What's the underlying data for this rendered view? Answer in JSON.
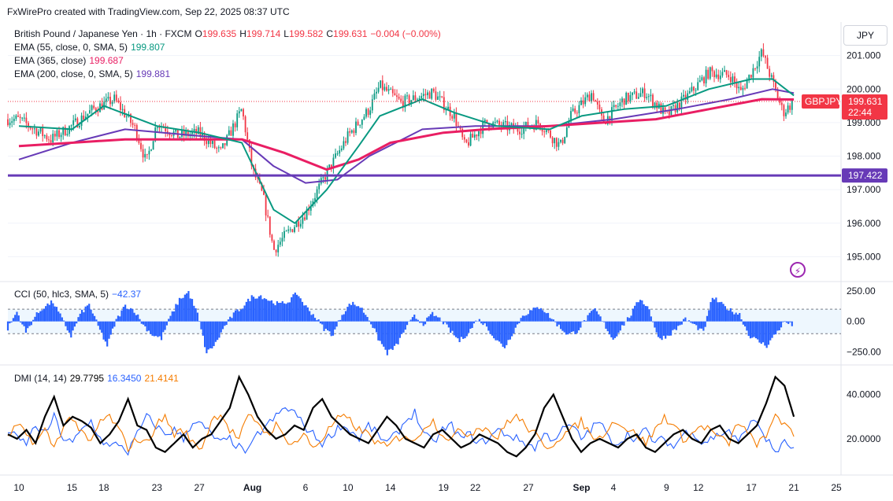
{
  "header": {
    "attribution": "FxWirePro created with TradingView.com, Sep 22, 2025 08:37 UTC"
  },
  "currency_button": "JPY",
  "main_legend": {
    "symbol": "British Pound / Japanese Yen · 1h · FXCM",
    "o_label": "O",
    "o_val": "199.635",
    "h_label": "H",
    "h_val": "199.714",
    "l_label": "L",
    "l_val": "199.582",
    "c_label": "C",
    "c_val": "199.631",
    "change": "−0.004 (−0.00%)",
    "ema55_label": "EMA (55, close, 0, SMA, 5)",
    "ema55_val": "199.807",
    "ema365_label": "EMA (365, close)",
    "ema365_val": "199.687",
    "ema200_label": "EMA (200, close, 0, SMA, 5)",
    "ema200_val": "199.881"
  },
  "cci_legend": {
    "label": "CCI (50, hlc3, SMA, 5)",
    "val": "−42.37"
  },
  "dmi_legend": {
    "label": "DMI (14, 14)",
    "adx": "29.7795",
    "plus": "16.3450",
    "minus": "21.4141"
  },
  "price_tag": {
    "symbol": "GBPJPY",
    "price": "199.631",
    "countdown": "22:44"
  },
  "level_tag": "197.422",
  "colors": {
    "up": "#089981",
    "down": "#f23645",
    "ema55": "#089981",
    "ema365": "#e91e63",
    "ema200": "#673ab7",
    "hline": "#673ab7",
    "cci": "#2962ff",
    "adx": "#000000",
    "plus_di": "#2962ff",
    "minus_di": "#f57c00"
  },
  "chart_data": [
    {
      "type": "candlestick",
      "title": "British Pound / Japanese Yen · 1h · FXCM",
      "x_tick_labels": [
        "10",
        "15",
        "18",
        "23",
        "27",
        "Aug",
        "6",
        "10",
        "14",
        "19",
        "22",
        "27",
        "Sep",
        "4",
        "9",
        "12",
        "17",
        "21",
        "25"
      ],
      "y_tick_labels": [
        "201.000",
        "200.000",
        "199.000",
        "198.000",
        "197.000",
        "196.000",
        "195.000"
      ],
      "ylim": [
        194.4,
        202.0
      ],
      "anchors": [
        {
          "date": "Jul 10",
          "price": 199.1
        },
        {
          "date": "Jul 13",
          "price": 198.5
        },
        {
          "date": "Jul 15",
          "price": 198.9
        },
        {
          "date": "Jul 17",
          "price": 199.4
        },
        {
          "date": "Jul 19",
          "price": 199.7
        },
        {
          "date": "Jul 21",
          "price": 198.8
        },
        {
          "date": "Jul 22",
          "price": 197.8
        },
        {
          "date": "Jul 23",
          "price": 199.0
        },
        {
          "date": "Jul 25",
          "price": 198.6
        },
        {
          "date": "Jul 27",
          "price": 198.7
        },
        {
          "date": "Jul 29",
          "price": 198.1
        },
        {
          "date": "Jul 31",
          "price": 199.4
        },
        {
          "date": "Aug 1",
          "price": 197.6
        },
        {
          "date": "Aug 2",
          "price": 196.8
        },
        {
          "date": "Aug 3",
          "price": 195.2
        },
        {
          "date": "Aug 4",
          "price": 195.6
        },
        {
          "date": "Aug 6",
          "price": 196.3
        },
        {
          "date": "Aug 8",
          "price": 197.5
        },
        {
          "date": "Aug 10",
          "price": 198.6
        },
        {
          "date": "Aug 12",
          "price": 199.4
        },
        {
          "date": "Aug 13",
          "price": 200.1
        },
        {
          "date": "Aug 15",
          "price": 199.6
        },
        {
          "date": "Aug 18",
          "price": 199.9
        },
        {
          "date": "Aug 20",
          "price": 199.2
        },
        {
          "date": "Aug 21",
          "price": 198.3
        },
        {
          "date": "Aug 23",
          "price": 199.0
        },
        {
          "date": "Aug 26",
          "price": 198.8
        },
        {
          "date": "Aug 28",
          "price": 199.0
        },
        {
          "date": "Aug 30",
          "price": 198.3
        },
        {
          "date": "Aug 31",
          "price": 199.2
        },
        {
          "date": "Sep 2",
          "price": 199.9
        },
        {
          "date": "Sep 3",
          "price": 199.0
        },
        {
          "date": "Sep 5",
          "price": 199.7
        },
        {
          "date": "Sep 7",
          "price": 199.9
        },
        {
          "date": "Sep 9",
          "price": 199.2
        },
        {
          "date": "Sep 11",
          "price": 199.8
        },
        {
          "date": "Sep 13",
          "price": 200.5
        },
        {
          "date": "Sep 15",
          "price": 200.4
        },
        {
          "date": "Sep 16",
          "price": 199.9
        },
        {
          "date": "Sep 18",
          "price": 201.1
        },
        {
          "date": "Sep 19",
          "price": 200.2
        },
        {
          "date": "Sep 20",
          "price": 199.3
        },
        {
          "date": "Sep 21",
          "price": 199.63
        }
      ],
      "ema55": [
        {
          "date": "Jul 10",
          "price": 198.9
        },
        {
          "date": "Jul 15",
          "price": 198.8
        },
        {
          "date": "Jul 18",
          "price": 199.5
        },
        {
          "date": "Jul 23",
          "price": 198.9
        },
        {
          "date": "Jul 27",
          "price": 198.7
        },
        {
          "date": "Jul 31",
          "price": 198.4
        },
        {
          "date": "Aug 3",
          "price": 196.4
        },
        {
          "date": "Aug 5",
          "price": 196.0
        },
        {
          "date": "Aug 8",
          "price": 197.0
        },
        {
          "date": "Aug 11",
          "price": 198.3
        },
        {
          "date": "Aug 13",
          "price": 199.2
        },
        {
          "date": "Aug 17",
          "price": 199.7
        },
        {
          "date": "Aug 20",
          "price": 199.3
        },
        {
          "date": "Aug 24",
          "price": 198.9
        },
        {
          "date": "Aug 29",
          "price": 198.8
        },
        {
          "date": "Sep 1",
          "price": 199.2
        },
        {
          "date": "Sep 5",
          "price": 199.4
        },
        {
          "date": "Sep 9",
          "price": 199.5
        },
        {
          "date": "Sep 13",
          "price": 200.0
        },
        {
          "date": "Sep 17",
          "price": 200.3
        },
        {
          "date": "Sep 19",
          "price": 200.3
        },
        {
          "date": "Sep 21",
          "price": 199.81
        }
      ],
      "ema365": [
        {
          "date": "Jul 10",
          "price": 198.3
        },
        {
          "date": "Jul 15",
          "price": 198.4
        },
        {
          "date": "Jul 20",
          "price": 198.5
        },
        {
          "date": "Jul 27",
          "price": 198.5
        },
        {
          "date": "Jul 31",
          "price": 198.5
        },
        {
          "date": "Aug 4",
          "price": 198.1
        },
        {
          "date": "Aug 8",
          "price": 197.6
        },
        {
          "date": "Aug 11",
          "price": 197.9
        },
        {
          "date": "Aug 14",
          "price": 198.4
        },
        {
          "date": "Aug 19",
          "price": 198.7
        },
        {
          "date": "Aug 23",
          "price": 198.8
        },
        {
          "date": "Aug 29",
          "price": 198.9
        },
        {
          "date": "Sep 3",
          "price": 199.0
        },
        {
          "date": "Sep 8",
          "price": 199.1
        },
        {
          "date": "Sep 13",
          "price": 199.4
        },
        {
          "date": "Sep 18",
          "price": 199.7
        },
        {
          "date": "Sep 21",
          "price": 199.69
        }
      ],
      "ema200": [
        {
          "date": "Jul 10",
          "price": 197.9
        },
        {
          "date": "Jul 15",
          "price": 198.4
        },
        {
          "date": "Jul 20",
          "price": 198.8
        },
        {
          "date": "Jul 27",
          "price": 198.6
        },
        {
          "date": "Jul 31",
          "price": 198.5
        },
        {
          "date": "Aug 3",
          "price": 197.7
        },
        {
          "date": "Aug 6",
          "price": 197.2
        },
        {
          "date": "Aug 9",
          "price": 197.3
        },
        {
          "date": "Aug 12",
          "price": 198.0
        },
        {
          "date": "Aug 17",
          "price": 198.8
        },
        {
          "date": "Aug 22",
          "price": 198.9
        },
        {
          "date": "Aug 29",
          "price": 198.9
        },
        {
          "date": "Sep 4",
          "price": 199.1
        },
        {
          "date": "Sep 10",
          "price": 199.4
        },
        {
          "date": "Sep 15",
          "price": 199.7
        },
        {
          "date": "Sep 19",
          "price": 200.0
        },
        {
          "date": "Sep 21",
          "price": 199.88
        }
      ],
      "horizontal_line": 197.422,
      "last_price": 199.631
    },
    {
      "type": "line",
      "title": "CCI (50, hlc3, SMA, 5)",
      "y_tick_labels": [
        "250.00",
        "0.00",
        "−250.00"
      ],
      "ylim": [
        -330,
        300
      ],
      "band": [
        100,
        -100
      ],
      "series": [
        {
          "values": [
            -60,
            80,
            -90,
            40,
            120,
            160,
            20,
            -120,
            60,
            140,
            -40,
            -200,
            10,
            130,
            90,
            -30,
            -110,
            -140,
            40,
            180,
            240,
            60,
            -260,
            -180,
            -40,
            60,
            120,
            200,
            210,
            170,
            140,
            160,
            230,
            120,
            40,
            -60,
            -110,
            60,
            150,
            120,
            20,
            -140,
            -260,
            -200,
            -60,
            40,
            -20,
            60,
            10,
            -80,
            -160,
            -90,
            20,
            -40,
            -150,
            -210,
            -80,
            50,
            90,
            120,
            40,
            -40,
            -110,
            -80,
            20,
            100,
            -20,
            -150,
            -40,
            60,
            190,
            100,
            -140,
            -120,
            -60,
            20,
            -30,
            -90,
            200,
            140,
            90,
            60,
            -110,
            -160,
            -200,
            -100,
            0,
            -42
          ]
        }
      ]
    },
    {
      "type": "line",
      "title": "DMI (14, 14)",
      "y_tick_labels": [
        "40.0000",
        "20.0000"
      ],
      "ylim": [
        5,
        52
      ],
      "series": [
        {
          "values": [
            22,
            20,
            24,
            18,
            30,
            39,
            26,
            30,
            28,
            25,
            18,
            22,
            28,
            38,
            26,
            24,
            16,
            14,
            18,
            22,
            16,
            20,
            22,
            28,
            34,
            48,
            40,
            30,
            24,
            20,
            22,
            26,
            24,
            34,
            38,
            30,
            26,
            22,
            20,
            18,
            24,
            30,
            26,
            20,
            18,
            16,
            22,
            24,
            20,
            16,
            18,
            22,
            20,
            18,
            14,
            12,
            16,
            22,
            34,
            40,
            30,
            20,
            14,
            18,
            20,
            18,
            16,
            20,
            22,
            16,
            14,
            18,
            22,
            24,
            20,
            18,
            24,
            26,
            20,
            18,
            22,
            26,
            36,
            48,
            44,
            30
          ]
        },
        {
          "values": [
            24,
            20,
            18,
            26,
            22,
            30,
            20,
            18,
            24,
            28,
            20,
            16,
            18,
            14,
            22,
            30,
            26,
            22,
            24,
            20,
            28,
            26,
            22,
            18,
            20,
            16,
            14,
            22,
            26,
            30,
            34,
            32,
            26,
            22,
            18,
            22,
            26,
            24,
            20,
            26,
            22,
            18,
            22,
            28,
            32,
            22,
            18,
            24,
            26,
            20,
            22,
            18,
            20,
            24,
            22,
            20,
            18,
            16,
            22,
            20,
            24,
            26,
            20,
            24,
            28,
            20,
            18,
            22,
            20,
            24,
            18,
            20,
            16,
            22,
            24,
            18,
            20,
            22,
            24,
            18,
            26,
            28,
            20,
            14,
            18,
            16
          ]
        },
        {
          "values": [
            20,
            26,
            22,
            18,
            24,
            16,
            26,
            30,
            22,
            18,
            28,
            30,
            24,
            16,
            20,
            18,
            26,
            30,
            22,
            24,
            18,
            16,
            28,
            32,
            24,
            20,
            30,
            28,
            22,
            26,
            20,
            18,
            22,
            16,
            20,
            26,
            30,
            28,
            24,
            22,
            18,
            16,
            20,
            22,
            18,
            26,
            28,
            22,
            20,
            24,
            22,
            26,
            24,
            20,
            28,
            30,
            26,
            22,
            16,
            18,
            22,
            24,
            28,
            22,
            20,
            26,
            28,
            24,
            22,
            18,
            24,
            30,
            26,
            20,
            22,
            26,
            24,
            20,
            18,
            28,
            22,
            18,
            20,
            32,
            26,
            21
          ]
        }
      ]
    }
  ]
}
